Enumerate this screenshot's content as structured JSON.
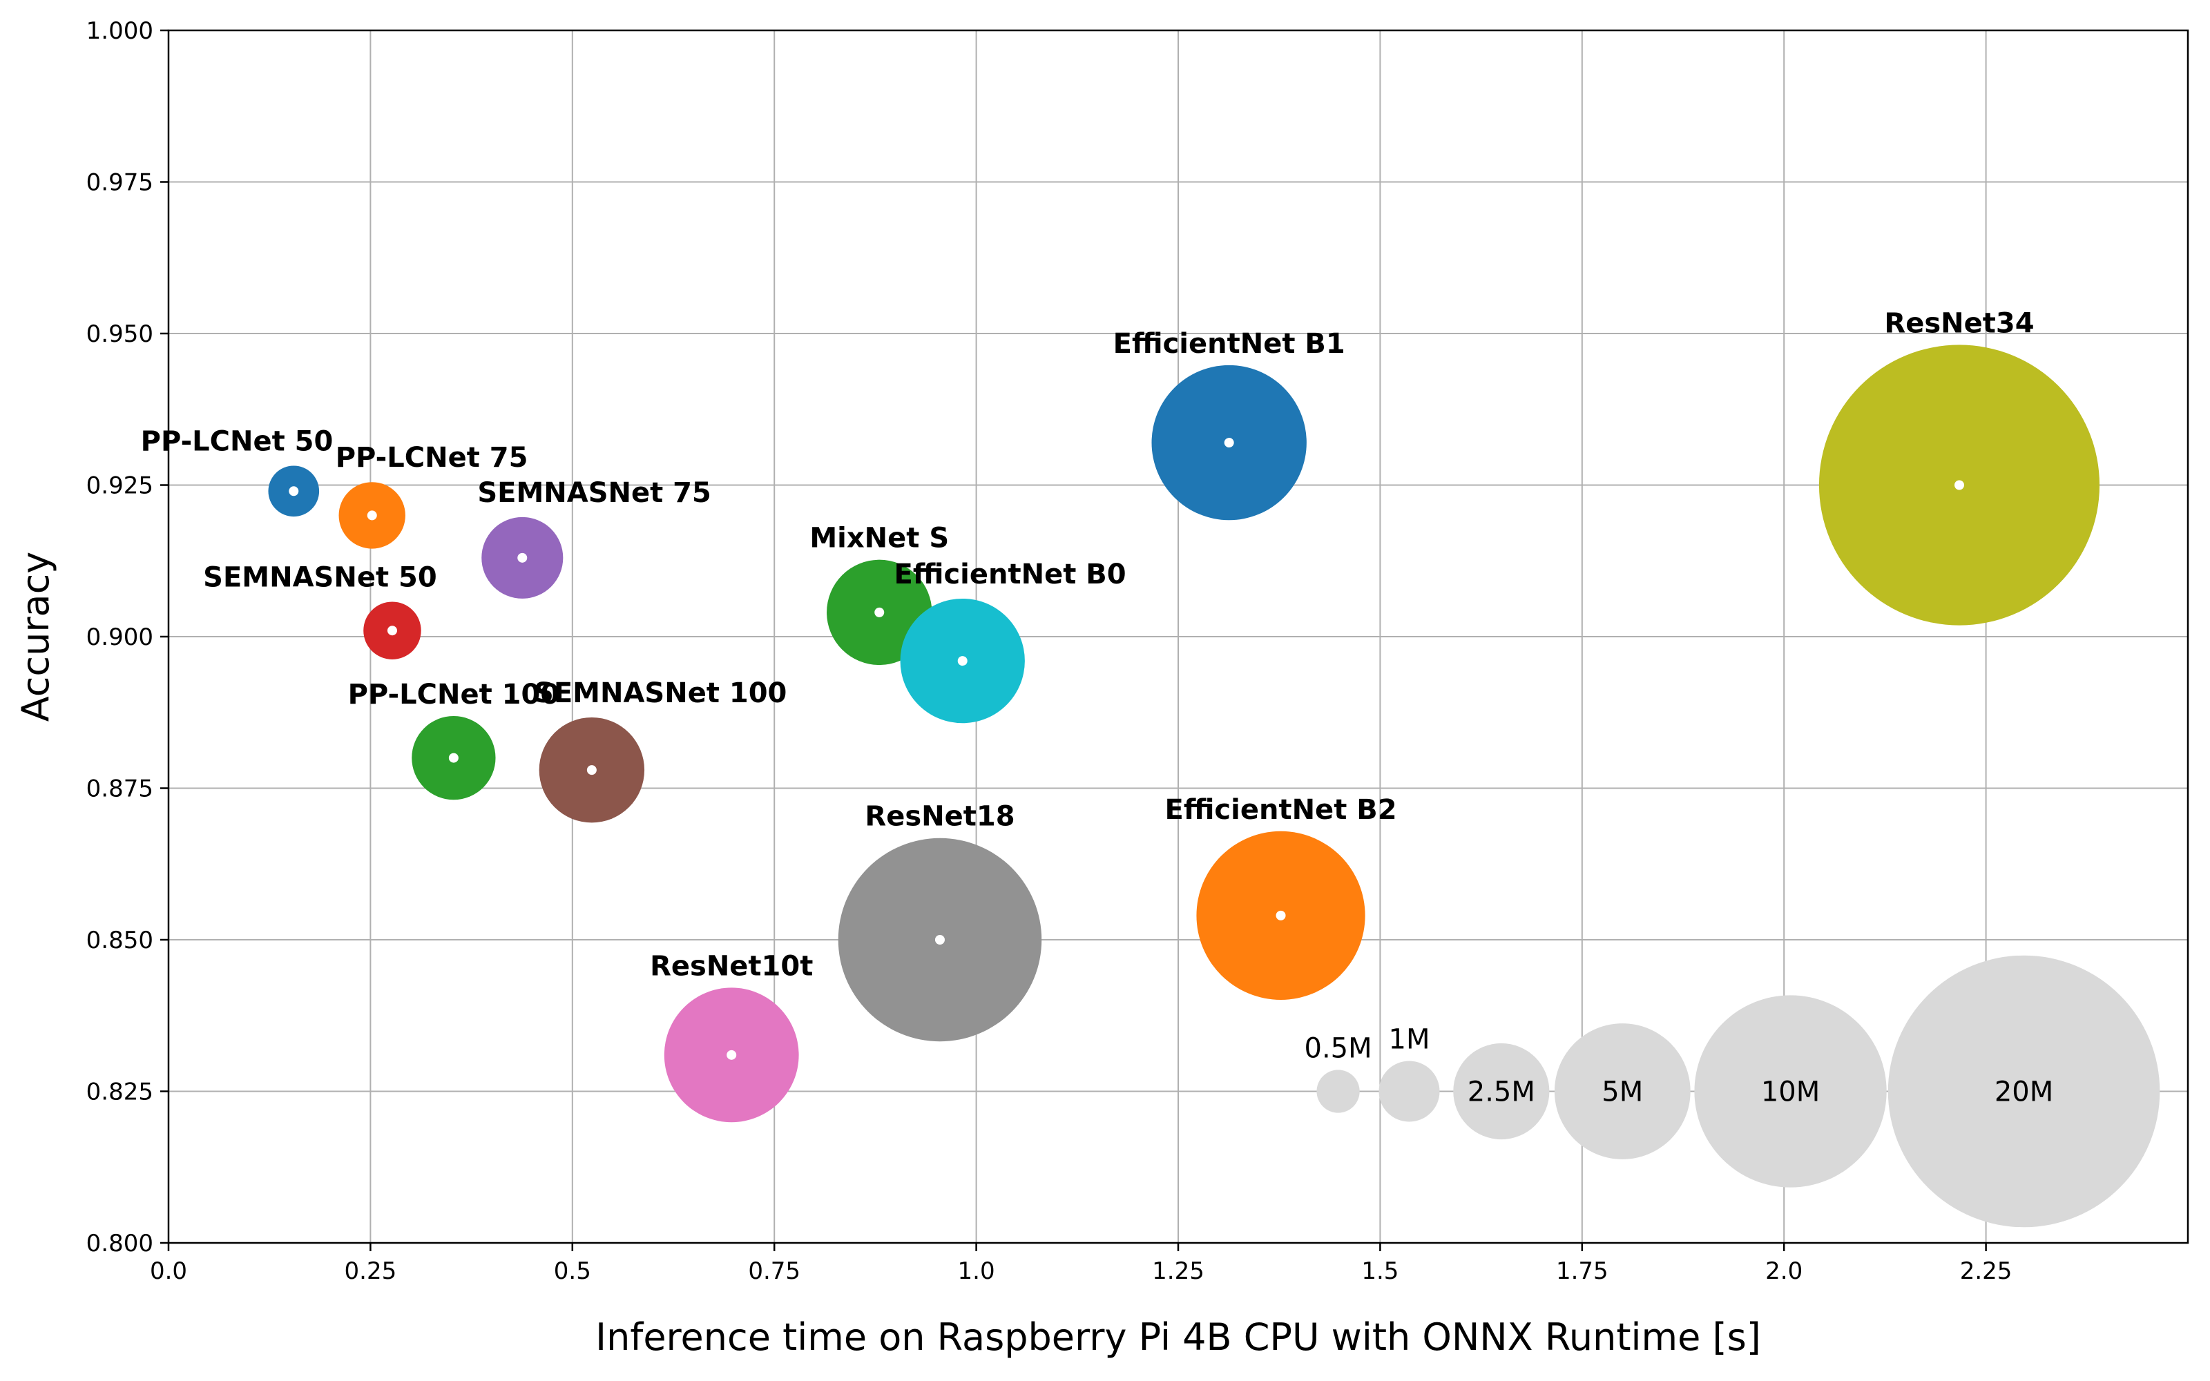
{
  "chart_data": {
    "type": "scatter",
    "variant": "bubble",
    "xlabel": "Inference time on Raspberry Pi 4B CPU with ONNX Runtime [s]",
    "ylabel": "Accuracy",
    "xlim": [
      0.0,
      2.5
    ],
    "ylim": [
      0.8,
      1.0
    ],
    "xticks": [
      "0.0",
      "0.25",
      "0.5",
      "0.75",
      "1.0",
      "1.25",
      "1.5",
      "1.75",
      "2.0",
      "2.25"
    ],
    "xtick_values": [
      0.0,
      0.25,
      0.5,
      0.75,
      1.0,
      1.25,
      1.5,
      1.75,
      2.0,
      2.25
    ],
    "yticks": [
      "0.800",
      "0.825",
      "0.850",
      "0.875",
      "0.900",
      "0.925",
      "0.950",
      "0.975",
      "1.000"
    ],
    "ytick_values": [
      0.8,
      0.825,
      0.85,
      0.875,
      0.9,
      0.925,
      0.95,
      0.975,
      1.0
    ],
    "grid": true,
    "size_encoding": "parameters (millions)",
    "points": [
      {
        "label": "PP-LCNet 50",
        "x": 0.155,
        "y": 0.924,
        "params_m": 0.7,
        "color": "#1f77b4",
        "label_pos": "above-left"
      },
      {
        "label": "PP-LCNet 75",
        "x": 0.252,
        "y": 0.92,
        "params_m": 1.2,
        "color": "#ff7f0e",
        "label_pos": "above-right"
      },
      {
        "label": "SEMNASNet 75",
        "x": 0.438,
        "y": 0.913,
        "params_m": 1.8,
        "color": "#9467bd",
        "label_pos": "above-right"
      },
      {
        "label": "SEMNASNet 50",
        "x": 0.277,
        "y": 0.901,
        "params_m": 0.9,
        "color": "#d62728",
        "label_pos": "above-left"
      },
      {
        "label": "PP-LCNet 100",
        "x": 0.353,
        "y": 0.88,
        "params_m": 1.9,
        "color": "#2ca02c",
        "label_pos": "above"
      },
      {
        "label": "SEMNASNet 100",
        "x": 0.524,
        "y": 0.878,
        "params_m": 3.0,
        "color": "#8c564b",
        "label_pos": "above-right"
      },
      {
        "label": "MixNet S",
        "x": 0.88,
        "y": 0.904,
        "params_m": 3.0,
        "color": "#2ca02c",
        "label_pos": "above"
      },
      {
        "label": "EfficientNet B0",
        "x": 0.983,
        "y": 0.896,
        "params_m": 4.2,
        "color": "#17becf",
        "label_pos": "above-right"
      },
      {
        "label": "EfficientNet B1",
        "x": 1.313,
        "y": 0.932,
        "params_m": 6.5,
        "color": "#1f77b4",
        "label_pos": "above"
      },
      {
        "label": "ResNet34",
        "x": 2.217,
        "y": 0.925,
        "params_m": 21.3,
        "color": "#bcbd22",
        "label_pos": "above"
      },
      {
        "label": "ResNet18",
        "x": 0.955,
        "y": 0.85,
        "params_m": 11.2,
        "color": "#929292",
        "label_pos": "above"
      },
      {
        "label": "EfficientNet B2",
        "x": 1.377,
        "y": 0.854,
        "params_m": 7.7,
        "color": "#ff7f0e",
        "label_pos": "above"
      },
      {
        "label": "ResNet10t",
        "x": 0.697,
        "y": 0.831,
        "params_m": 4.9,
        "color": "#e377c2",
        "label_pos": "above"
      }
    ],
    "size_legend": [
      {
        "label": "0.5M",
        "x": 1.448,
        "y": 0.825,
        "params_m": 0.5,
        "label_pos": "above"
      },
      {
        "label": "1M",
        "x": 1.536,
        "y": 0.825,
        "params_m": 1.0,
        "label_pos": "above"
      },
      {
        "label": "2.5M",
        "x": 1.65,
        "y": 0.825,
        "params_m": 2.5,
        "label_pos": "center"
      },
      {
        "label": "5M",
        "x": 1.8,
        "y": 0.825,
        "params_m": 5.0,
        "label_pos": "center"
      },
      {
        "label": "10M",
        "x": 2.008,
        "y": 0.825,
        "params_m": 10.0,
        "label_pos": "center"
      },
      {
        "label": "20M",
        "x": 2.297,
        "y": 0.825,
        "params_m": 20.0,
        "label_pos": "center"
      }
    ],
    "legend_color": "#d9d9d9",
    "center_dot_color": "#ffffff"
  }
}
